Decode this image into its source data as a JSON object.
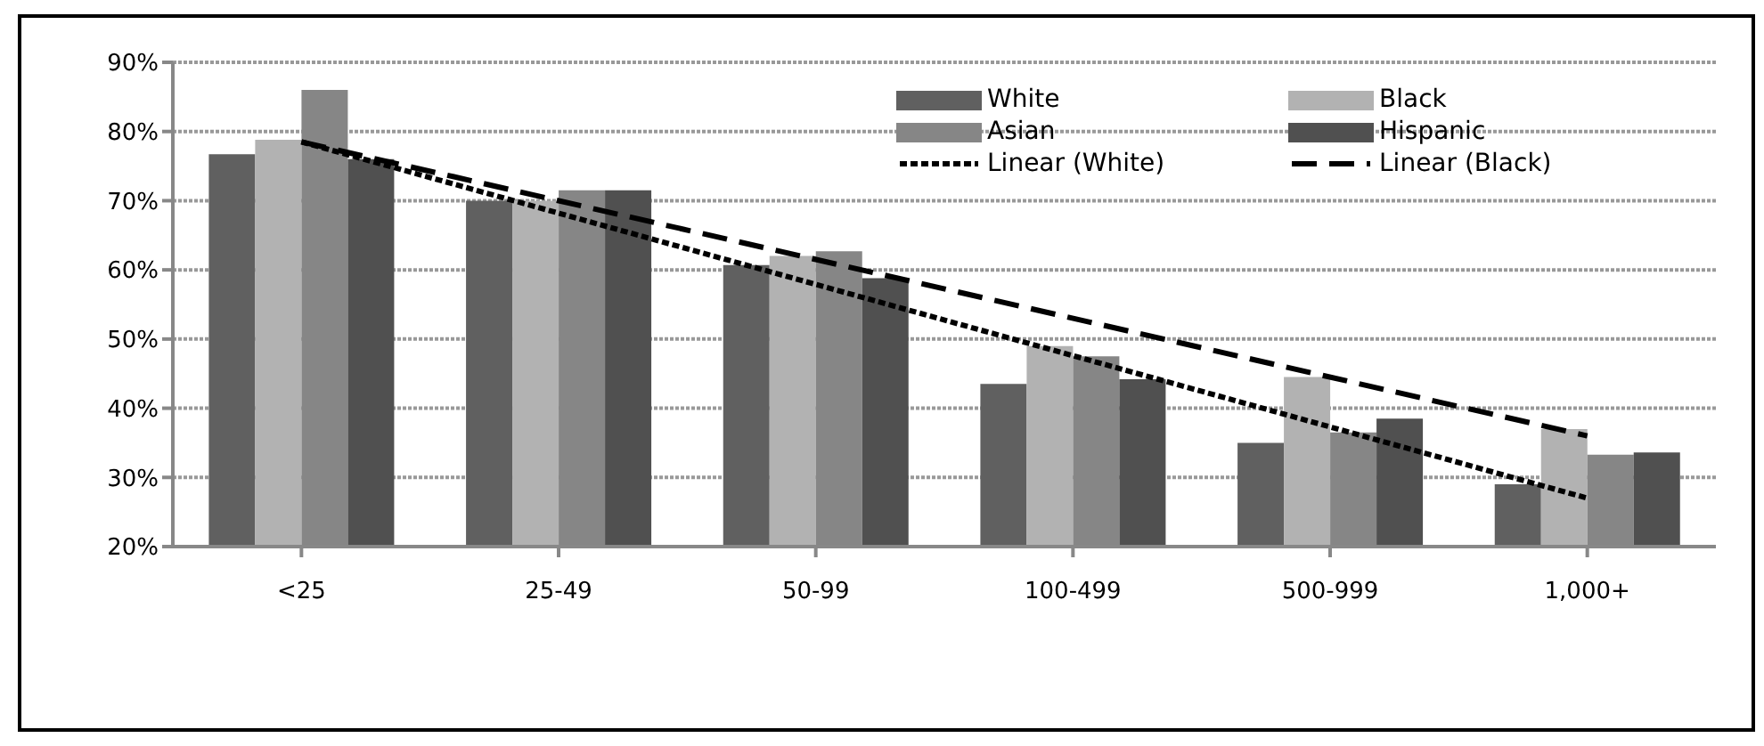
{
  "chart_data": {
    "type": "bar",
    "categories": [
      "<25",
      "25-49",
      "50-99",
      "100-499",
      "500-999",
      "1,000+"
    ],
    "series": [
      {
        "name": "White",
        "color": "#606060",
        "values": [
          76.7,
          70,
          60.7,
          43.5,
          35,
          29
        ]
      },
      {
        "name": "Black",
        "color": "#b2b2b2",
        "values": [
          78.8,
          70,
          62,
          49,
          44.5,
          37
        ]
      },
      {
        "name": "Asian",
        "color": "#868686",
        "values": [
          86,
          71.5,
          62.7,
          47.5,
          36.5,
          33.3
        ]
      },
      {
        "name": "Hispanic",
        "color": "#505050",
        "values": [
          76,
          71.5,
          58.8,
          44.2,
          38.5,
          33.6
        ]
      },
      {
        "name": "Linear (White)",
        "type": "line",
        "color": "#000000",
        "line_style": "dotted",
        "x": [
          "<25",
          "1,000+"
        ],
        "values": [
          78.5,
          27
        ]
      },
      {
        "name": "Linear (Black)",
        "type": "line",
        "color": "#000000",
        "line_style": "dashed",
        "x": [
          "<25",
          "1,000+"
        ],
        "values": [
          78.5,
          36
        ]
      }
    ],
    "ylim": [
      20,
      90
    ],
    "yticks": [
      {
        "value": 20,
        "label": "20%"
      },
      {
        "value": 30,
        "label": "30%"
      },
      {
        "value": 40,
        "label": "40%"
      },
      {
        "value": 50,
        "label": "50%"
      },
      {
        "value": 60,
        "label": "60%"
      },
      {
        "value": 70,
        "label": "70%"
      },
      {
        "value": 80,
        "label": "80%"
      },
      {
        "value": 90,
        "label": "90%"
      }
    ],
    "grid": "y",
    "legend": "top right",
    "marker": "none"
  }
}
